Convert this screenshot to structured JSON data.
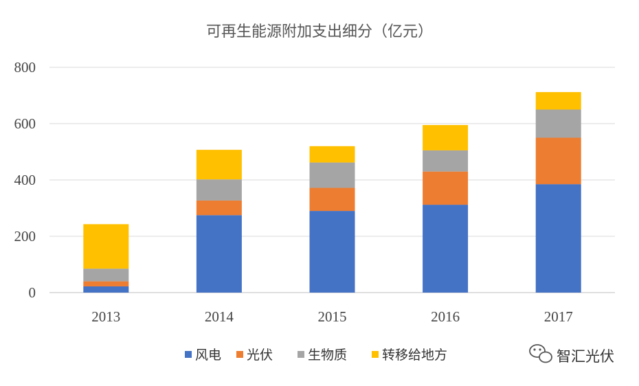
{
  "chart_data": {
    "type": "bar",
    "stacked": true,
    "title": "可再生能源附加支出细分（亿元）",
    "categories": [
      "2013",
      "2014",
      "2015",
      "2016",
      "2017"
    ],
    "series": [
      {
        "name": "风电",
        "values": [
          22,
          275,
          290,
          312,
          385
        ],
        "color": "#4472C4"
      },
      {
        "name": "光伏",
        "values": [
          18,
          52,
          82,
          118,
          165
        ],
        "color": "#ED7D31"
      },
      {
        "name": "生物质",
        "values": [
          45,
          75,
          90,
          75,
          100
        ],
        "color": "#A5A5A5"
      },
      {
        "name": "转移给地方",
        "values": [
          158,
          105,
          58,
          90,
          62
        ],
        "color": "#FFC000"
      }
    ],
    "ylim": [
      0,
      800
    ],
    "yticks": [
      "0",
      "200",
      "400",
      "600",
      "800"
    ],
    "grid": true,
    "legend_position": "bottom"
  },
  "watermark": {
    "text": "智汇光伏",
    "icon": "wechat-icon"
  }
}
